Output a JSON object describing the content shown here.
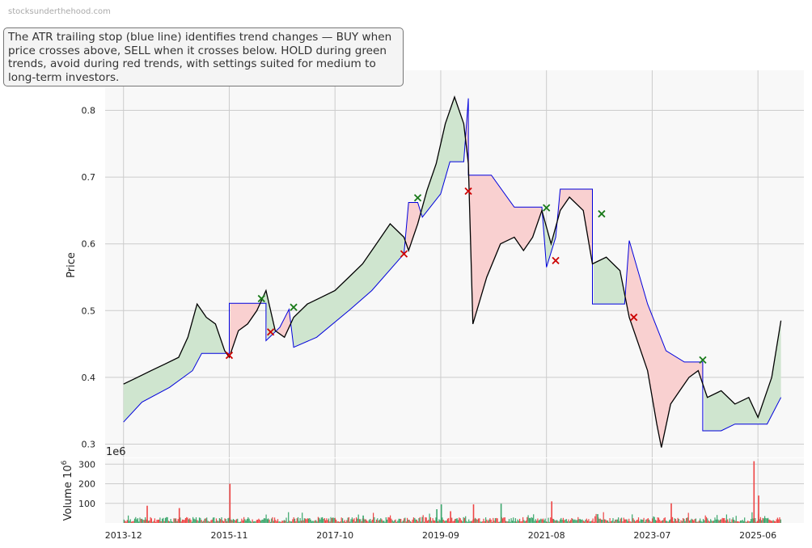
{
  "watermark": "stocksunderthehood.com",
  "annotation": "The ATR trailing stop (blue line) identifies trend changes — BUY when price crosses above, SELL when it crosses below. HOLD during green trends, avoid during red trends, with settings suited for medium to long-term investors.",
  "colors": {
    "price_line": "#000000",
    "stop_line": "#0000dd",
    "bull_fill": "#cfe5cf",
    "bear_fill": "#f9d0d0",
    "buy_marker": "#1a7a1a",
    "sell_marker": "#cc0000",
    "volume_up": "#3aa66b",
    "volume_down": "#ee4444",
    "panel_bg": "#f8f8f8",
    "grid": "#cccccc"
  },
  "chart_data": [
    {
      "type": "line",
      "panel": "price",
      "ylabel": "Price",
      "ylim": [
        0.28,
        0.86
      ],
      "yticks": [
        0.3,
        0.4,
        0.5,
        0.6,
        0.7,
        0.8
      ],
      "ytick_labels": [
        "0.3",
        "0.4",
        "0.5",
        "0.6",
        "0.7",
        "0.8"
      ],
      "xlim": [
        "2013-08",
        "2026-04"
      ],
      "x_tick_labels": [
        "2013-12",
        "2015-11",
        "2017-10",
        "2019-09",
        "2021-08",
        "2023-07",
        "2025-06"
      ],
      "grid": true,
      "series": [
        {
          "role": "price",
          "points": [
            [
              "2013-12",
              0.39
            ],
            [
              "2014-03",
              0.4
            ],
            [
              "2014-06",
              0.41
            ],
            [
              "2014-09",
              0.42
            ],
            [
              "2014-12",
              0.43
            ],
            [
              "2015-02",
              0.46
            ],
            [
              "2015-04",
              0.51
            ],
            [
              "2015-06",
              0.49
            ],
            [
              "2015-08",
              0.48
            ],
            [
              "2015-10",
              0.44
            ],
            [
              "2015-11",
              0.43
            ],
            [
              "2016-01",
              0.47
            ],
            [
              "2016-03",
              0.48
            ],
            [
              "2016-05",
              0.5
            ],
            [
              "2016-07",
              0.53
            ],
            [
              "2016-09",
              0.47
            ],
            [
              "2016-11",
              0.46
            ],
            [
              "2017-01",
              0.49
            ],
            [
              "2017-04",
              0.51
            ],
            [
              "2017-07",
              0.52
            ],
            [
              "2017-10",
              0.53
            ],
            [
              "2018-01",
              0.55
            ],
            [
              "2018-04",
              0.57
            ],
            [
              "2018-07",
              0.6
            ],
            [
              "2018-10",
              0.63
            ],
            [
              "2019-01",
              0.61
            ],
            [
              "2019-02",
              0.59
            ],
            [
              "2019-04",
              0.63
            ],
            [
              "2019-06",
              0.68
            ],
            [
              "2019-08",
              0.72
            ],
            [
              "2019-10",
              0.78
            ],
            [
              "2019-12",
              0.82
            ],
            [
              "2020-02",
              0.78
            ],
            [
              "2020-03",
              0.72
            ],
            [
              "2020-04",
              0.48
            ],
            [
              "2020-07",
              0.55
            ],
            [
              "2020-10",
              0.6
            ],
            [
              "2021-01",
              0.61
            ],
            [
              "2021-03",
              0.59
            ],
            [
              "2021-05",
              0.61
            ],
            [
              "2021-07",
              0.65
            ],
            [
              "2021-09",
              0.6
            ],
            [
              "2021-11",
              0.65
            ],
            [
              "2022-01",
              0.67
            ],
            [
              "2022-04",
              0.65
            ],
            [
              "2022-06",
              0.57
            ],
            [
              "2022-09",
              0.58
            ],
            [
              "2022-12",
              0.56
            ],
            [
              "2023-02",
              0.49
            ],
            [
              "2023-04",
              0.45
            ],
            [
              "2023-06",
              0.41
            ],
            [
              "2023-08",
              0.33
            ],
            [
              "2023-09",
              0.295
            ],
            [
              "2023-11",
              0.36
            ],
            [
              "2024-01",
              0.38
            ],
            [
              "2024-03",
              0.4
            ],
            [
              "2024-05",
              0.41
            ],
            [
              "2024-07",
              0.37
            ],
            [
              "2024-10",
              0.38
            ],
            [
              "2025-01",
              0.36
            ],
            [
              "2025-04",
              0.37
            ],
            [
              "2025-06",
              0.34
            ],
            [
              "2025-09",
              0.4
            ],
            [
              "2025-11",
              0.485
            ]
          ]
        },
        {
          "role": "atr_trailing_stop",
          "points": [
            [
              "2013-12",
              0.333
            ],
            [
              "2014-04",
              0.363
            ],
            [
              "2014-10",
              0.385
            ],
            [
              "2015-03",
              0.41
            ],
            [
              "2015-05",
              0.436
            ],
            [
              "2015-11",
              0.436
            ],
            [
              "2015-11",
              0.511
            ],
            [
              "2016-07",
              0.511
            ],
            [
              "2016-07",
              0.455
            ],
            [
              "2016-10",
              0.475
            ],
            [
              "2016-12",
              0.502
            ],
            [
              "2017-01",
              0.445
            ],
            [
              "2017-06",
              0.46
            ],
            [
              "2018-01",
              0.5
            ],
            [
              "2018-06",
              0.53
            ],
            [
              "2019-01",
              0.585
            ],
            [
              "2019-02",
              0.662
            ],
            [
              "2019-04",
              0.662
            ],
            [
              "2019-05",
              0.64
            ],
            [
              "2019-09",
              0.675
            ],
            [
              "2019-11",
              0.723
            ],
            [
              "2020-02",
              0.723
            ],
            [
              "2020-03",
              0.818
            ],
            [
              "2020-03",
              0.703
            ],
            [
              "2020-08",
              0.703
            ],
            [
              "2021-01",
              0.655
            ],
            [
              "2021-07",
              0.655
            ],
            [
              "2021-08",
              0.565
            ],
            [
              "2021-10",
              0.61
            ],
            [
              "2021-11",
              0.682
            ],
            [
              "2022-06",
              0.682
            ],
            [
              "2022-06",
              0.51
            ],
            [
              "2023-01",
              0.51
            ],
            [
              "2023-02",
              0.605
            ],
            [
              "2023-06",
              0.51
            ],
            [
              "2023-10",
              0.44
            ],
            [
              "2024-02",
              0.423
            ],
            [
              "2024-06",
              0.423
            ],
            [
              "2024-06",
              0.32
            ],
            [
              "2024-10",
              0.32
            ],
            [
              "2025-01",
              0.33
            ],
            [
              "2025-08",
              0.33
            ],
            [
              "2025-11",
              0.37
            ]
          ]
        }
      ],
      "buy_signals": [
        [
          "2016-06",
          0.518
        ],
        [
          "2017-01",
          0.505
        ],
        [
          "2019-04",
          0.669
        ],
        [
          "2021-08",
          0.654
        ],
        [
          "2022-08",
          0.645
        ],
        [
          "2024-06",
          0.426
        ]
      ],
      "sell_signals": [
        [
          "2015-11",
          0.433
        ],
        [
          "2016-08",
          0.468
        ],
        [
          "2019-01",
          0.585
        ],
        [
          "2020-03",
          0.679
        ],
        [
          "2021-10",
          0.575
        ],
        [
          "2023-03",
          0.49
        ]
      ]
    },
    {
      "type": "bar",
      "panel": "volume",
      "ylabel": "Volume",
      "yunit": "1e6",
      "ylabel_exponent": "10^6",
      "ylim": [
        0,
        330
      ],
      "yticks": [
        100,
        200,
        300
      ],
      "ytick_labels": [
        "100",
        "200",
        "300"
      ],
      "spikes": [
        {
          "x": "2014-05",
          "value": 88,
          "dir": "down"
        },
        {
          "x": "2014-12",
          "value": 76,
          "dir": "down"
        },
        {
          "x": "2015-11",
          "value": 200,
          "dir": "down"
        },
        {
          "x": "2018-04",
          "value": 38,
          "dir": "up"
        },
        {
          "x": "2019-08",
          "value": 70,
          "dir": "up"
        },
        {
          "x": "2019-09",
          "value": 95,
          "dir": "up"
        },
        {
          "x": "2019-11",
          "value": 60,
          "dir": "down"
        },
        {
          "x": "2020-04",
          "value": 95,
          "dir": "down"
        },
        {
          "x": "2020-10",
          "value": 98,
          "dir": "up"
        },
        {
          "x": "2021-09",
          "value": 110,
          "dir": "down"
        },
        {
          "x": "2022-07",
          "value": 45,
          "dir": "up"
        },
        {
          "x": "2023-11",
          "value": 100,
          "dir": "down"
        },
        {
          "x": "2025-05",
          "value": 315,
          "dir": "down"
        },
        {
          "x": "2025-06",
          "value": 140,
          "dir": "down"
        }
      ],
      "baseline_volume_range": [
        5,
        30
      ]
    }
  ]
}
